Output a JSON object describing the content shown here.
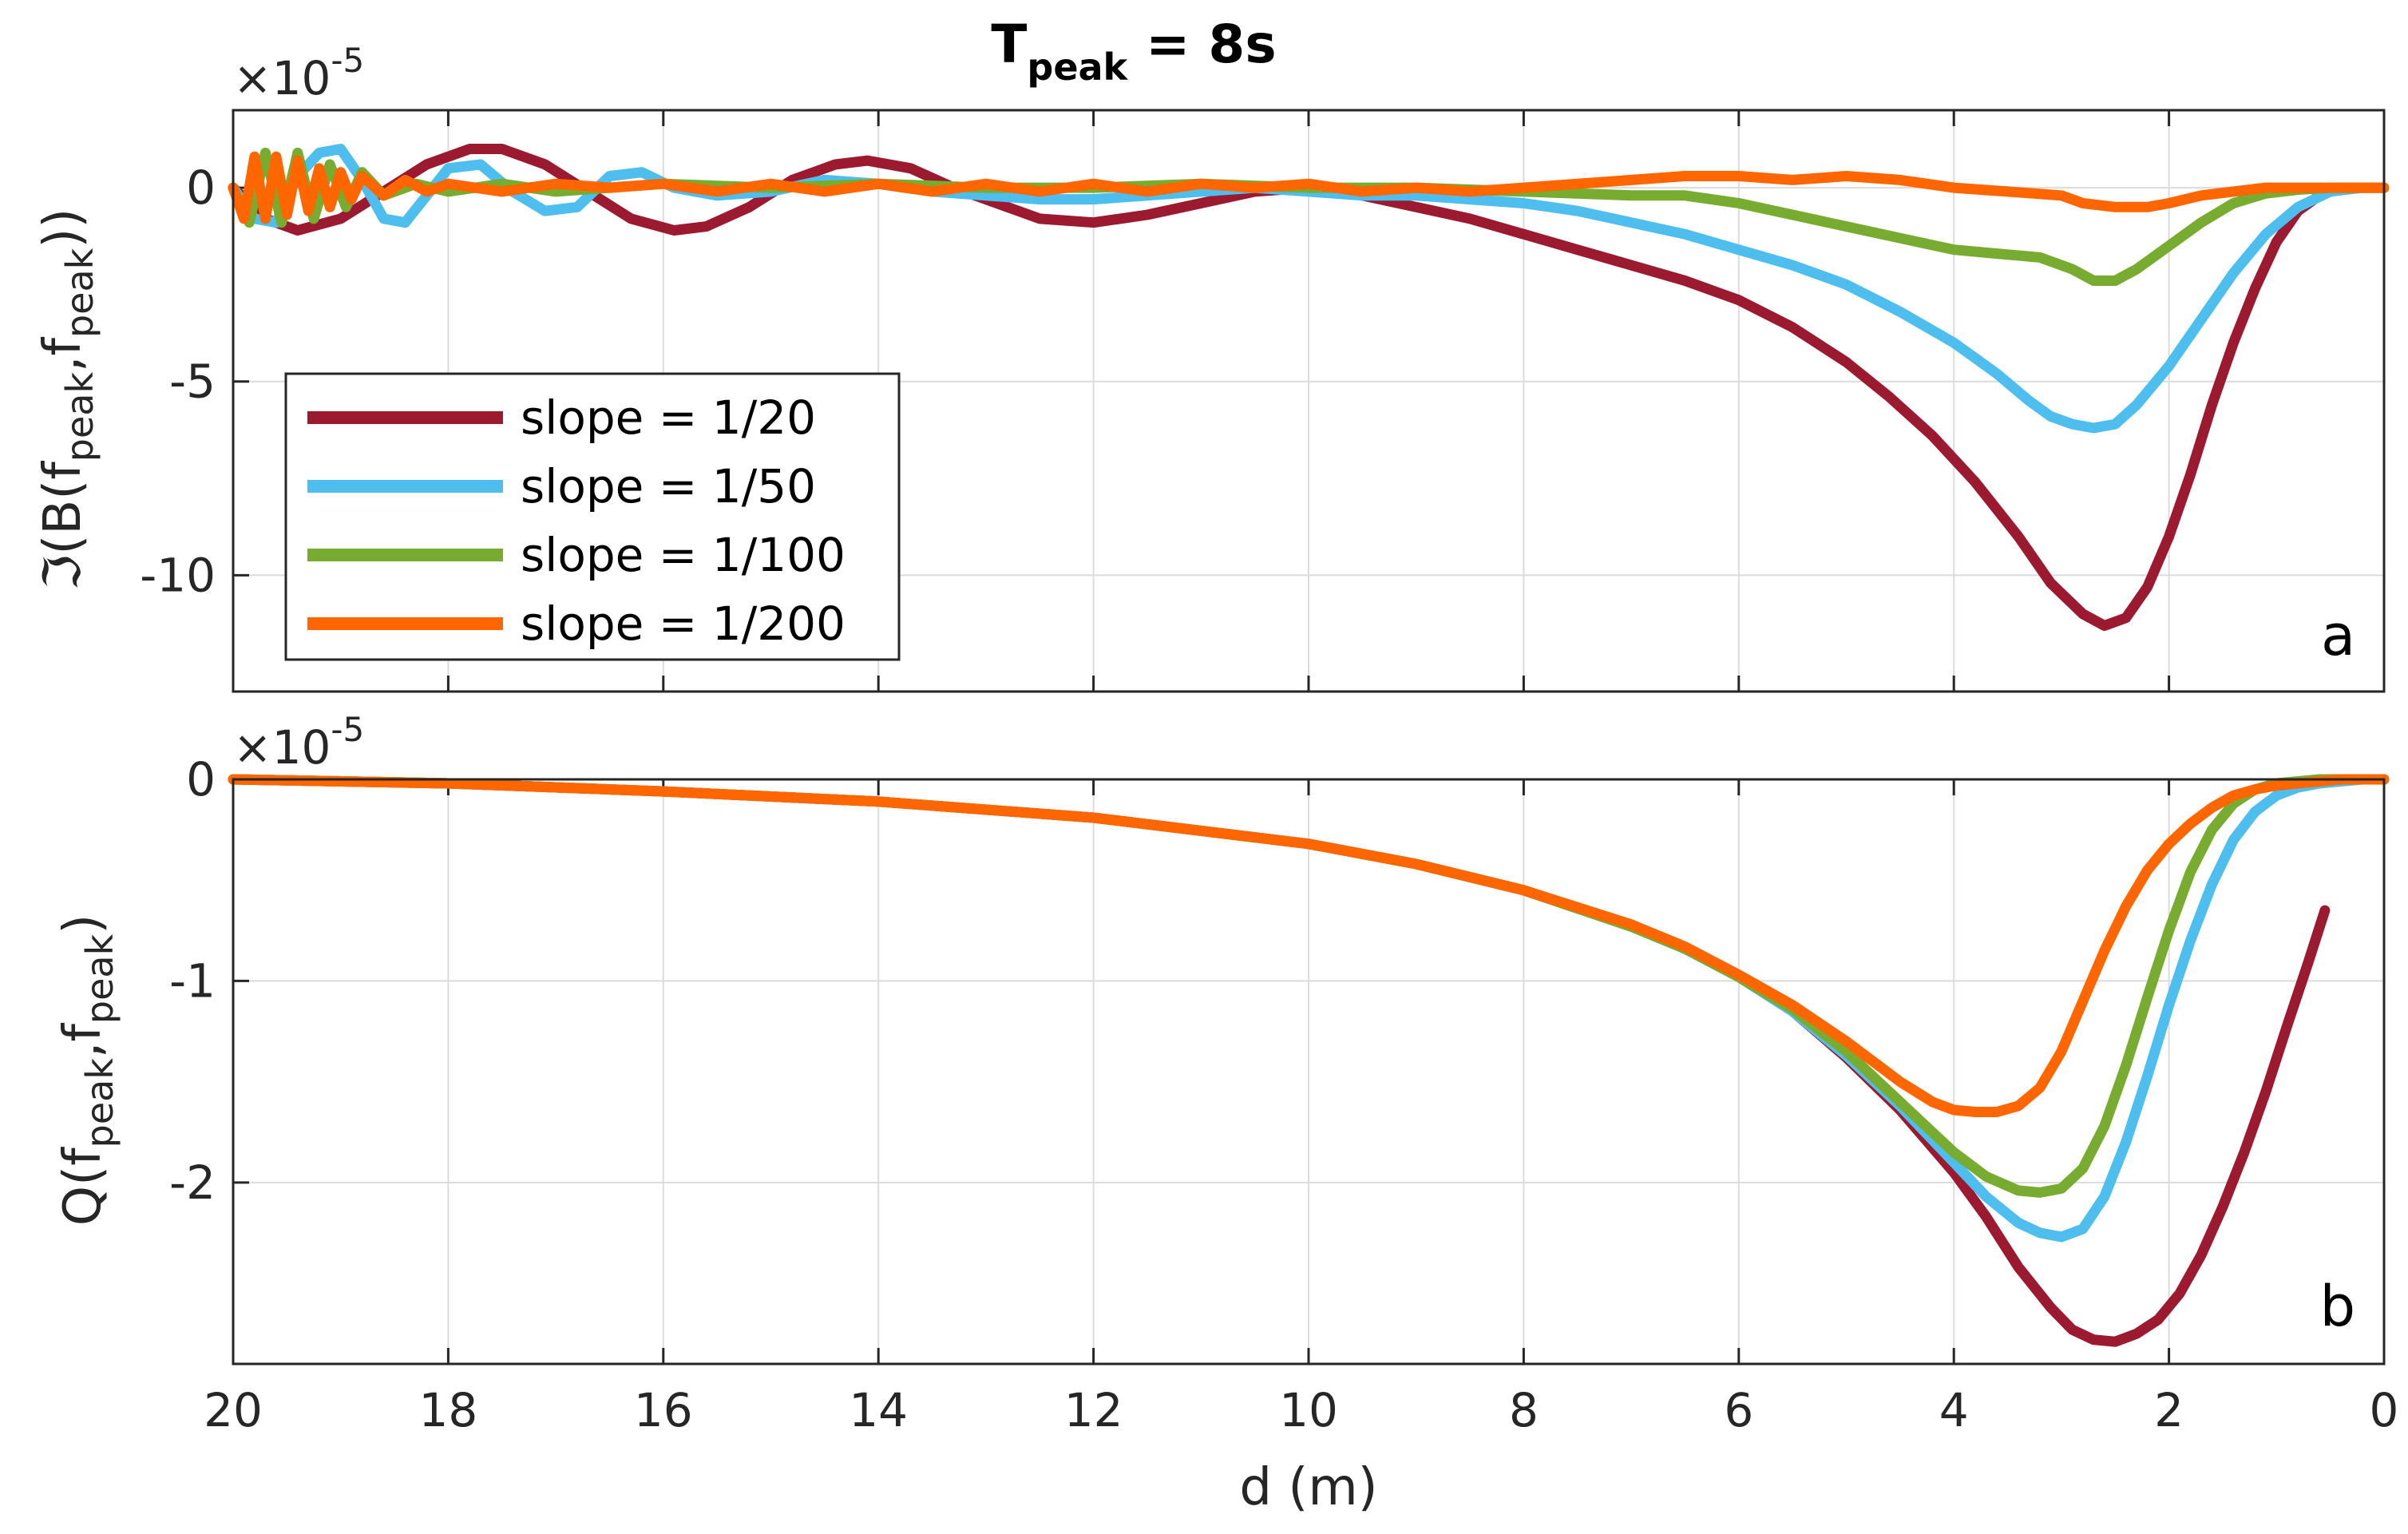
{
  "title": {
    "main": "T",
    "sub": "peak",
    "rest": " = 8s"
  },
  "xlabel": "d (m)",
  "colors": {
    "slope_1_20": "#9b1a2f",
    "slope_1_50": "#4dbeee",
    "slope_1_100": "#77ac30",
    "slope_1_200": "#ff6600"
  },
  "legend": [
    "slope = 1/20",
    "slope = 1/50",
    "slope = 1/100",
    "slope = 1/200"
  ],
  "chart_data": [
    {
      "type": "line",
      "panel": "a",
      "title": "T_peak = 8s",
      "exponent_label": "×10",
      "exponent": "-5",
      "ylabel_parts": [
        "ℑ(B(f",
        "peak",
        ",f",
        "peak",
        "))"
      ],
      "xlabel": "d (m)",
      "xlim": [
        20,
        0
      ],
      "ylim": [
        -13,
        2
      ],
      "xticks": [
        20,
        18,
        16,
        14,
        12,
        10,
        8,
        6,
        4,
        2,
        0
      ],
      "yticks": [
        0,
        -5,
        -10
      ],
      "ytick_labels": [
        "0",
        "-5",
        "-10"
      ],
      "grid": true,
      "legend_position": "bottom-left",
      "series": [
        {
          "name": "slope = 1/20",
          "color": "#9b1a2f",
          "x": [
            20,
            19.7,
            19.4,
            19,
            18.6,
            18.2,
            17.8,
            17.5,
            17.1,
            16.7,
            16.3,
            15.9,
            15.6,
            15.2,
            14.8,
            14.4,
            14.1,
            13.7,
            13.3,
            12.9,
            12.5,
            12,
            11.5,
            11,
            10.5,
            10,
            9.5,
            9,
            8.5,
            8,
            7.5,
            7,
            6.5,
            6,
            5.5,
            5,
            4.6,
            4.2,
            3.8,
            3.4,
            3.1,
            2.8,
            2.6,
            2.4,
            2.2,
            2,
            1.8,
            1.6,
            1.4,
            1.2,
            1,
            0.8,
            0.6,
            0.4,
            0.2,
            0
          ],
          "y": [
            0,
            -0.8,
            -1.1,
            -0.8,
            -0.1,
            0.6,
            1,
            1,
            0.6,
            -0.1,
            -0.8,
            -1.1,
            -1,
            -0.5,
            0.2,
            0.6,
            0.7,
            0.5,
            0,
            -0.4,
            -0.8,
            -0.9,
            -0.7,
            -0.4,
            -0.1,
            0,
            -0.2,
            -0.5,
            -0.8,
            -1.2,
            -1.6,
            -2,
            -2.4,
            -2.9,
            -3.6,
            -4.5,
            -5.4,
            -6.4,
            -7.6,
            -9,
            -10.2,
            -11,
            -11.3,
            -11.1,
            -10.3,
            -9,
            -7.4,
            -5.6,
            -4,
            -2.6,
            -1.4,
            -0.6,
            -0.2,
            0,
            0,
            0
          ]
        },
        {
          "name": "slope = 1/50",
          "color": "#4dbeee",
          "x": [
            20,
            19.8,
            19.6,
            19.4,
            19.2,
            19,
            18.8,
            18.6,
            18.4,
            18.2,
            18,
            17.7,
            17.4,
            17.1,
            16.8,
            16.5,
            16.2,
            15.9,
            15.5,
            15,
            14.5,
            14,
            13.5,
            13,
            12.5,
            12,
            11.5,
            11,
            10.5,
            10,
            9.5,
            9,
            8.5,
            8,
            7.5,
            7,
            6.5,
            6,
            5.5,
            5,
            4.5,
            4,
            3.6,
            3.3,
            3.1,
            2.9,
            2.7,
            2.5,
            2.3,
            2,
            1.7,
            1.4,
            1.1,
            0.8,
            0.5,
            0.2,
            0
          ],
          "y": [
            0,
            -0.8,
            -0.9,
            0.3,
            0.9,
            1,
            0.2,
            -0.8,
            -0.9,
            -0.2,
            0.5,
            0.6,
            -0.1,
            -0.6,
            -0.5,
            0.3,
            0.4,
            0,
            -0.2,
            -0.1,
            0.2,
            0.1,
            -0.1,
            -0.2,
            -0.3,
            -0.3,
            -0.2,
            -0.1,
            0,
            -0.1,
            -0.2,
            -0.2,
            -0.3,
            -0.4,
            -0.6,
            -0.9,
            -1.2,
            -1.6,
            -2,
            -2.5,
            -3.2,
            -4,
            -4.8,
            -5.5,
            -5.9,
            -6.1,
            -6.2,
            -6.1,
            -5.6,
            -4.6,
            -3.4,
            -2.2,
            -1.2,
            -0.5,
            -0.1,
            0,
            0
          ]
        },
        {
          "name": "slope = 1/100",
          "color": "#77ac30",
          "x": [
            20,
            19.85,
            19.7,
            19.55,
            19.4,
            19.25,
            19.1,
            18.95,
            18.8,
            18.6,
            18.3,
            18,
            17.5,
            17,
            16.5,
            16,
            15,
            14,
            13,
            12,
            11,
            10,
            9,
            8,
            7,
            6.5,
            6,
            5.5,
            5,
            4.5,
            4,
            3.6,
            3.2,
            2.9,
            2.7,
            2.5,
            2.3,
            2,
            1.7,
            1.4,
            1.1,
            0.8,
            0.5,
            0.2,
            0
          ],
          "y": [
            0,
            -0.9,
            0.9,
            -0.9,
            0.9,
            -0.8,
            0.6,
            -0.5,
            0.4,
            -0.2,
            0.1,
            -0.1,
            0.1,
            -0.1,
            0,
            0.1,
            0,
            0.1,
            0,
            0,
            0.1,
            0,
            0,
            -0.1,
            -0.2,
            -0.2,
            -0.4,
            -0.7,
            -1,
            -1.3,
            -1.6,
            -1.7,
            -1.8,
            -2.1,
            -2.4,
            -2.4,
            -2.1,
            -1.5,
            -0.9,
            -0.4,
            -0.15,
            -0.05,
            0,
            0,
            0
          ]
        },
        {
          "name": "slope = 1/200",
          "color": "#ff6600",
          "x": [
            20,
            19.9,
            19.8,
            19.7,
            19.6,
            19.5,
            19.4,
            19.3,
            19.2,
            19.1,
            19,
            18.9,
            18.8,
            18.6,
            18.4,
            18.2,
            18,
            17.5,
            17,
            16.5,
            16,
            15.5,
            15,
            14.5,
            14,
            13.5,
            13,
            12.5,
            12,
            11.5,
            11,
            10.5,
            10,
            9.5,
            9,
            8.5,
            8,
            7.5,
            7,
            6.5,
            6,
            5.5,
            5,
            4.5,
            4,
            3.5,
            3,
            2.8,
            2.5,
            2.2,
            2,
            1.7,
            1.4,
            1.1,
            0.8,
            0.5,
            0.2,
            0
          ],
          "y": [
            0,
            -0.8,
            0.8,
            -0.8,
            0.8,
            -0.7,
            0.7,
            -0.6,
            0.5,
            -0.5,
            0.4,
            -0.3,
            0.3,
            -0.2,
            0.2,
            -0.1,
            0.1,
            -0.1,
            0.1,
            0,
            0.1,
            -0.1,
            0.1,
            -0.1,
            0.1,
            -0.1,
            0.1,
            -0.1,
            0.1,
            -0.1,
            0.1,
            0,
            0.1,
            -0.1,
            0,
            -0.1,
            0,
            0.1,
            0.2,
            0.3,
            0.3,
            0.2,
            0.3,
            0.2,
            0,
            -0.1,
            -0.2,
            -0.4,
            -0.5,
            -0.5,
            -0.4,
            -0.2,
            -0.1,
            0,
            0,
            0,
            0,
            0
          ]
        }
      ]
    },
    {
      "type": "line",
      "panel": "b",
      "exponent_label": "×10",
      "exponent": "-5",
      "ylabel_parts": [
        "Q(f",
        "peak",
        ",f",
        "peak",
        ")"
      ],
      "xlabel": "d (m)",
      "xlim": [
        20,
        0
      ],
      "ylim": [
        -2.9,
        0
      ],
      "xticks": [
        20,
        18,
        16,
        14,
        12,
        10,
        8,
        6,
        4,
        2,
        0
      ],
      "xtick_labels": [
        "20",
        "18",
        "16",
        "14",
        "12",
        "10",
        "8",
        "6",
        "4",
        "2",
        "0"
      ],
      "yticks": [
        0,
        -1,
        -2
      ],
      "ytick_labels": [
        "0",
        "-1",
        "-2"
      ],
      "grid": true,
      "series": [
        {
          "name": "slope = 1/20",
          "color": "#9b1a2f",
          "x": [
            20,
            18,
            16,
            14,
            12,
            10,
            9,
            8,
            7,
            6.5,
            6,
            5.5,
            5,
            4.5,
            4,
            3.7,
            3.4,
            3.1,
            2.9,
            2.7,
            2.5,
            2.3,
            2.1,
            1.9,
            1.7,
            1.5,
            1.3,
            1.1,
            0.9,
            0.7,
            0.55
          ],
          "y": [
            0,
            -0.02,
            -0.06,
            -0.11,
            -0.19,
            -0.32,
            -0.42,
            -0.55,
            -0.73,
            -0.84,
            -0.98,
            -1.15,
            -1.38,
            -1.64,
            -1.95,
            -2.17,
            -2.42,
            -2.62,
            -2.73,
            -2.78,
            -2.79,
            -2.75,
            -2.68,
            -2.55,
            -2.36,
            -2.12,
            -1.85,
            -1.55,
            -1.22,
            -0.9,
            -0.65
          ]
        },
        {
          "name": "slope = 1/50",
          "color": "#4dbeee",
          "x": [
            20,
            18,
            16,
            14,
            12,
            10,
            9,
            8,
            7,
            6.5,
            6,
            5.5,
            5,
            4.5,
            4,
            3.7,
            3.4,
            3.2,
            3,
            2.8,
            2.6,
            2.4,
            2.2,
            2,
            1.8,
            1.6,
            1.4,
            1.2,
            1,
            0.8,
            0.6,
            0.4,
            0.2,
            0
          ],
          "y": [
            0,
            -0.02,
            -0.06,
            -0.11,
            -0.19,
            -0.32,
            -0.42,
            -0.55,
            -0.73,
            -0.84,
            -0.98,
            -1.15,
            -1.37,
            -1.62,
            -1.9,
            -2.07,
            -2.2,
            -2.25,
            -2.27,
            -2.23,
            -2.07,
            -1.8,
            -1.47,
            -1.12,
            -0.8,
            -0.52,
            -0.3,
            -0.16,
            -0.08,
            -0.04,
            -0.02,
            -0.01,
            0,
            0
          ]
        },
        {
          "name": "slope = 1/100",
          "color": "#77ac30",
          "x": [
            20,
            18,
            16,
            14,
            12,
            10,
            9,
            8,
            7,
            6.5,
            6,
            5.5,
            5,
            4.5,
            4,
            3.7,
            3.4,
            3.2,
            3,
            2.8,
            2.6,
            2.4,
            2.2,
            2,
            1.8,
            1.6,
            1.4,
            1.2,
            1,
            0.8,
            0.6,
            0.4,
            0.2,
            0
          ],
          "y": [
            0,
            -0.02,
            -0.06,
            -0.11,
            -0.19,
            -0.32,
            -0.42,
            -0.55,
            -0.73,
            -0.84,
            -0.98,
            -1.14,
            -1.35,
            -1.6,
            -1.85,
            -1.97,
            -2.04,
            -2.05,
            -2.03,
            -1.93,
            -1.72,
            -1.42,
            -1.08,
            -0.75,
            -0.46,
            -0.25,
            -0.12,
            -0.05,
            -0.02,
            -0.01,
            0,
            0,
            0,
            0
          ]
        },
        {
          "name": "slope = 1/200",
          "color": "#ff6600",
          "x": [
            20,
            18,
            16,
            14,
            12,
            10,
            9,
            8,
            7,
            6.5,
            6,
            5.5,
            5,
            4.5,
            4.2,
            4,
            3.8,
            3.6,
            3.4,
            3.2,
            3,
            2.8,
            2.6,
            2.4,
            2.2,
            2,
            1.8,
            1.6,
            1.4,
            1.2,
            1,
            0.8,
            0.6,
            0.4,
            0.2,
            0
          ],
          "y": [
            0,
            -0.02,
            -0.06,
            -0.11,
            -0.19,
            -0.32,
            -0.42,
            -0.55,
            -0.72,
            -0.83,
            -0.97,
            -1.12,
            -1.3,
            -1.5,
            -1.6,
            -1.64,
            -1.65,
            -1.65,
            -1.62,
            -1.53,
            -1.35,
            -1.1,
            -0.85,
            -0.63,
            -0.45,
            -0.32,
            -0.22,
            -0.14,
            -0.08,
            -0.05,
            -0.03,
            -0.02,
            -0.01,
            0,
            0,
            0
          ]
        }
      ]
    }
  ]
}
